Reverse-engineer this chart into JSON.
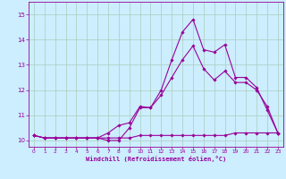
{
  "xlabel": "Windchill (Refroidissement éolien,°C)",
  "background_color": "#cceeff",
  "grid_color": "#aaccbb",
  "line_color": "#990099",
  "x_hours": [
    0,
    1,
    2,
    3,
    4,
    5,
    6,
    7,
    8,
    9,
    10,
    11,
    12,
    13,
    14,
    15,
    16,
    17,
    18,
    19,
    20,
    21,
    22,
    23
  ],
  "temp_line": [
    10.2,
    10.1,
    10.1,
    10.1,
    10.1,
    10.1,
    10.1,
    10.1,
    10.1,
    10.1,
    10.2,
    10.2,
    10.2,
    10.2,
    10.2,
    10.2,
    10.2,
    10.2,
    10.2,
    10.3,
    10.3,
    10.3,
    10.3,
    10.3
  ],
  "windchill_line": [
    10.2,
    10.1,
    10.1,
    10.1,
    10.1,
    10.1,
    10.1,
    10.0,
    10.0,
    10.5,
    11.3,
    11.3,
    12.0,
    13.2,
    14.3,
    14.8,
    13.6,
    13.5,
    13.8,
    12.5,
    12.5,
    12.1,
    11.2,
    10.3
  ],
  "apparent_line": [
    10.2,
    10.1,
    10.1,
    10.1,
    10.1,
    10.1,
    10.1,
    10.3,
    10.6,
    10.7,
    11.35,
    11.3,
    11.8,
    12.5,
    13.2,
    13.75,
    12.85,
    12.4,
    12.75,
    12.3,
    12.3,
    12.0,
    11.35,
    10.3
  ],
  "ylim": [
    9.75,
    15.5
  ],
  "yticks": [
    10,
    11,
    12,
    13,
    14,
    15
  ],
  "xlim": [
    -0.5,
    23.5
  ],
  "xticks": [
    0,
    1,
    2,
    3,
    4,
    5,
    6,
    7,
    8,
    9,
    10,
    11,
    12,
    13,
    14,
    15,
    16,
    17,
    18,
    19,
    20,
    21,
    22,
    23
  ]
}
